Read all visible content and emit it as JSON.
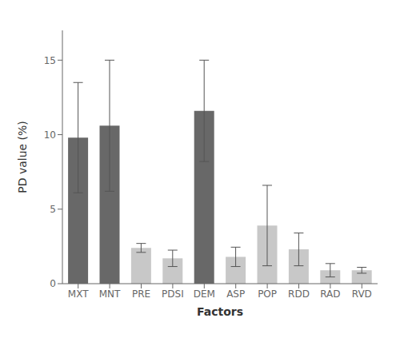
{
  "chart_data": {
    "type": "bar",
    "categories": [
      "MXT",
      "MNT",
      "PRE",
      "PDSI",
      "DEM",
      "ASP",
      "POP",
      "RDD",
      "RAD",
      "RVD"
    ],
    "values": [
      9.8,
      10.6,
      2.4,
      1.7,
      11.6,
      1.8,
      3.9,
      2.3,
      0.9,
      0.9
    ],
    "errors": [
      3.7,
      4.4,
      0.3,
      0.55,
      3.4,
      0.65,
      2.7,
      1.1,
      0.45,
      0.2
    ],
    "colors": [
      "#686868",
      "#686868",
      "#c8c8c8",
      "#c8c8c8",
      "#686868",
      "#c8c8c8",
      "#c8c8c8",
      "#c8c8c8",
      "#c8c8c8",
      "#c8c8c8"
    ],
    "xlabel": "Factors",
    "ylabel": "PD value (%)",
    "ylim": [
      0,
      17
    ],
    "yticks": [
      0,
      5,
      10,
      15
    ],
    "grid": false
  }
}
